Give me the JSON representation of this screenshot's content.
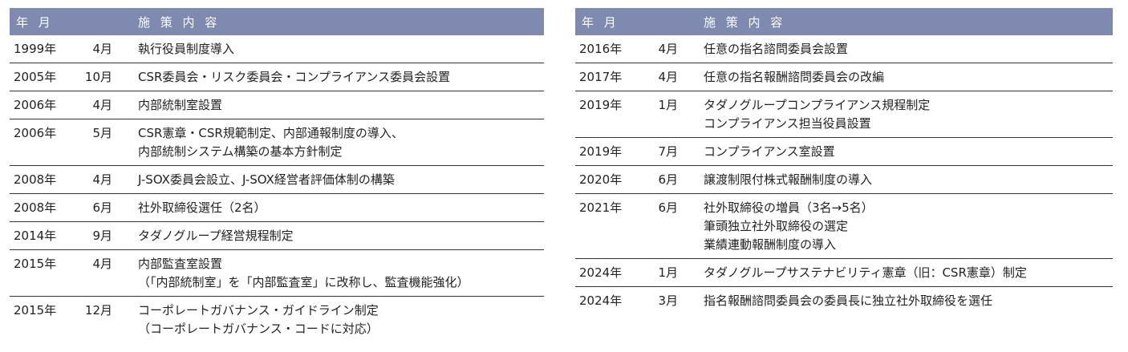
{
  "header_color": "#7e8aaf",
  "tables": [
    {
      "head": {
        "date": "年 月",
        "content": "施 策 内 容"
      },
      "rows": [
        {
          "year": "1999年",
          "month": "4月",
          "text": "執行役員制度導入"
        },
        {
          "year": "2005年",
          "month": "10月",
          "text": "CSR委員会・リスク委員会・コンプライアンス委員会設置"
        },
        {
          "year": "2006年",
          "month": "4月",
          "text": "内部統制室設置"
        },
        {
          "year": "2006年",
          "month": "5月",
          "text": "CSR憲章・CSR規範制定、内部通報制度の導入、\n内部統制システム構築の基本方針制定"
        },
        {
          "year": "2008年",
          "month": "4月",
          "text": "J-SOX委員会設立、J-SOX経営者評価体制の構築"
        },
        {
          "year": "2008年",
          "month": "6月",
          "text": "社外取締役選任（2名）"
        },
        {
          "year": "2014年",
          "month": "9月",
          "text": "タダノグループ経営規程制定"
        },
        {
          "year": "2015年",
          "month": "4月",
          "text": "内部監査室設置\n（「内部統制室」を「内部監査室」に改称し、監査機能強化）"
        },
        {
          "year": "2015年",
          "month": "12月",
          "text": "コーポレートガバナンス・ガイドライン制定\n（コーポレートガバナンス・コードに対応）"
        }
      ]
    },
    {
      "head": {
        "date": "年 月",
        "content": "施 策 内 容"
      },
      "rows": [
        {
          "year": "2016年",
          "month": "4月",
          "text": "任意の指名諮問委員会設置"
        },
        {
          "year": "2017年",
          "month": "4月",
          "text": "任意の指名報酬諮問委員会の改編"
        },
        {
          "year": "2019年",
          "month": "1月",
          "text": "タダノグループコンプライアンス規程制定\nコンプライアンス担当役員設置"
        },
        {
          "year": "2019年",
          "month": "7月",
          "text": "コンプライアンス室設置"
        },
        {
          "year": "2020年",
          "month": "6月",
          "text": "譲渡制限付株式報酬制度の導入"
        },
        {
          "year": "2021年",
          "month": "6月",
          "text": "社外取締役の増員（3名→5名）\n筆頭独立社外取締役の選定\n業績連動報酬制度の導入"
        },
        {
          "year": "2024年",
          "month": "1月",
          "text": "タダノグループサステナビリティ憲章（旧：CSR憲章）制定"
        },
        {
          "year": "2024年",
          "month": "3月",
          "text": "指名報酬諮問委員会の委員長に独立社外取締役を選任"
        }
      ]
    }
  ]
}
